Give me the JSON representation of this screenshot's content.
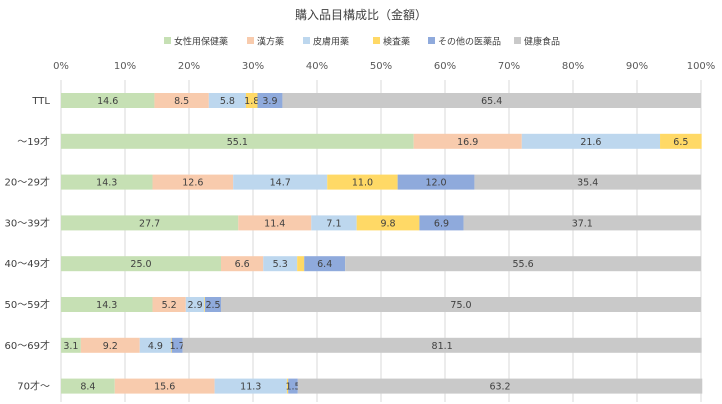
{
  "chart_data": {
    "type": "bar",
    "orientation": "horizontal",
    "stacked": "percent",
    "title": "購入品目構成比（金額）",
    "categories": [
      "TTL",
      "～19才",
      "20～29才",
      "30～39才",
      "40～49才",
      "50～59才",
      "60～69才",
      "70才～"
    ],
    "series": [
      {
        "name": "女性用保健薬",
        "color": "#c6e0b4",
        "values": [
          14.6,
          55.1,
          14.3,
          27.7,
          25.0,
          14.3,
          3.1,
          8.4
        ]
      },
      {
        "name": "漢方薬",
        "color": "#f8cbad",
        "values": [
          8.5,
          16.9,
          12.6,
          11.4,
          6.6,
          5.2,
          9.2,
          15.6
        ]
      },
      {
        "name": "皮膚用薬",
        "color": "#bdd7ee",
        "values": [
          5.8,
          21.6,
          14.7,
          7.1,
          5.3,
          2.9,
          4.9,
          11.3
        ]
      },
      {
        "name": "検査薬",
        "color": "#ffd966",
        "values": [
          1.8,
          6.5,
          11.0,
          9.8,
          1.1,
          0.1,
          0.1,
          0.2
        ]
      },
      {
        "name": "その他の医薬品",
        "color": "#8faadc",
        "values": [
          3.9,
          0,
          12.0,
          6.9,
          6.4,
          2.5,
          1.7,
          1.5
        ]
      },
      {
        "name": "健康食品",
        "color": "#c9c9c9",
        "values": [
          65.4,
          0,
          35.4,
          37.1,
          55.6,
          75.0,
          81.1,
          63.2
        ]
      }
    ],
    "data_labels": [
      [
        "14.6",
        "8.5",
        "5.8",
        "1.8",
        "3.9",
        "65.4"
      ],
      [
        "55.1",
        "16.9",
        "21.6",
        "6.5",
        "",
        ""
      ],
      [
        "14.3",
        "12.6",
        "14.7",
        "11.0",
        "12.0",
        "35.4"
      ],
      [
        "27.7",
        "11.4",
        "7.1",
        "9.8",
        "6.9",
        "37.1"
      ],
      [
        "25.0",
        "6.6",
        "5.3",
        "",
        "6.4",
        "55.6"
      ],
      [
        "14.3",
        "5.2",
        "2.9",
        "",
        "2.5",
        "75.0"
      ],
      [
        "3.1",
        "9.2",
        "4.9",
        "",
        "1.7",
        "81.1"
      ],
      [
        "8.4",
        "15.6",
        "11.3",
        "",
        "1.5",
        "63.2"
      ]
    ],
    "x_ticks": [
      "0%",
      "10%",
      "20%",
      "30%",
      "40%",
      "50%",
      "60%",
      "70%",
      "80%",
      "90%",
      "100%"
    ],
    "xlim": [
      0,
      100
    ],
    "legend_position": "top",
    "grid": true
  }
}
